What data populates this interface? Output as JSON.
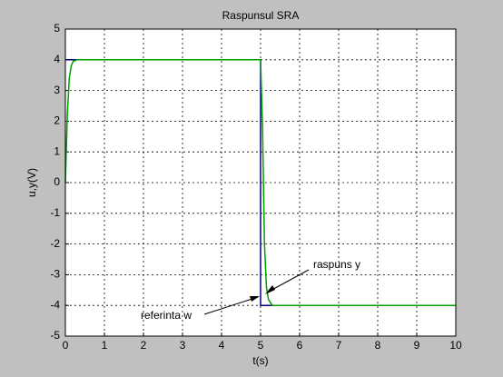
{
  "chart_data": {
    "type": "line",
    "title": "Raspunsul SRA",
    "xlabel": "t(s)",
    "ylabel": "u,y(V)",
    "xlim": [
      0,
      10
    ],
    "ylim": [
      -5,
      5
    ],
    "xticks": [
      0,
      1,
      2,
      3,
      4,
      5,
      6,
      7,
      8,
      9,
      10
    ],
    "yticks": [
      -5,
      -4,
      -3,
      -2,
      -1,
      0,
      1,
      2,
      3,
      4,
      5
    ],
    "grid": true,
    "series": [
      {
        "name": "referinta w",
        "color": "#00008b",
        "x": [
          0,
          5,
          5,
          10
        ],
        "values": [
          4,
          4,
          -4,
          -4
        ]
      },
      {
        "name": "raspuns y",
        "color": "#00a000",
        "x": [
          0,
          0.05,
          0.1,
          0.15,
          0.2,
          0.3,
          5,
          5.05,
          5.1,
          5.15,
          5.2,
          5.3,
          10
        ],
        "values": [
          0,
          2.2,
          3.4,
          3.8,
          3.95,
          4,
          4,
          1.8,
          -2,
          -3.4,
          -3.8,
          -4,
          -4
        ]
      }
    ],
    "annotations": [
      "raspuns y",
      "referinta w"
    ]
  }
}
